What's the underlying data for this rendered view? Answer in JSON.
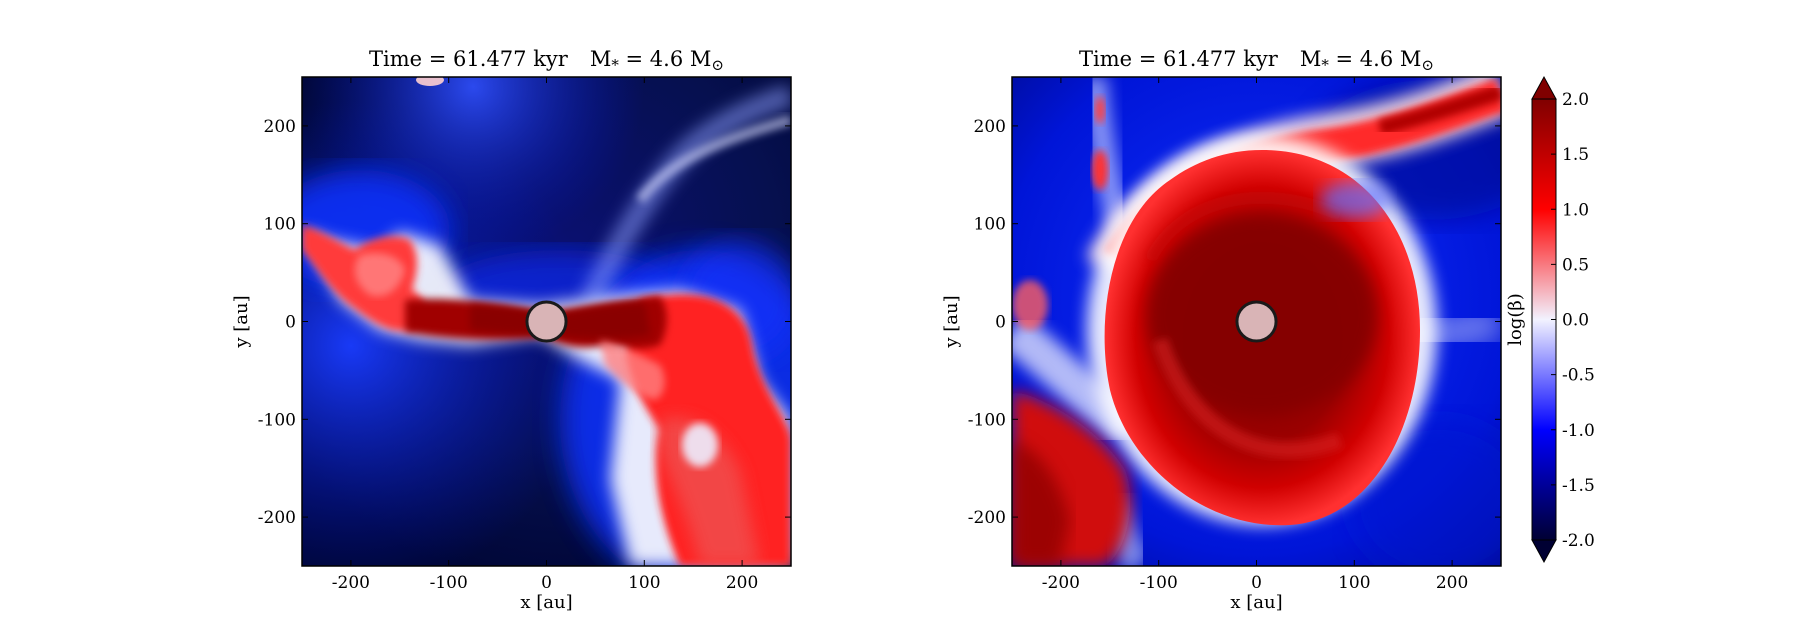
{
  "chart_data": [
    {
      "type": "heatmap",
      "title_parts": {
        "time": "Time = 61.477 kyr",
        "mass": "M",
        "mass_sub": "*",
        "mass_value": " = 4.6 M",
        "mass_sun": "⊙"
      },
      "xlabel": "x [au]",
      "ylabel": "y [au]",
      "xlim": [
        -250,
        250
      ],
      "ylim": [
        -250,
        250
      ],
      "xticks": [
        -200,
        -100,
        0,
        100,
        200
      ],
      "yticks": [
        -200,
        -100,
        0,
        100,
        200
      ],
      "xtick_labels": [
        "-200",
        "-100",
        "0",
        "100",
        "200"
      ],
      "ytick_labels": [
        "-200",
        "-100",
        "0",
        "100",
        "200"
      ],
      "sink_marker": {
        "x": 0,
        "y": 0,
        "radius": 20,
        "color": "#d9b4b6"
      },
      "field": "log(beta), edge-on view: dense red disk band along y≈0 with a red outflow lobe toward lower right; blue to dark navy background"
    },
    {
      "type": "heatmap",
      "title_parts": {
        "time": "Time = 61.477 kyr",
        "mass": "M",
        "mass_sub": "*",
        "mass_value": " = 4.6 M",
        "mass_sun": "⊙"
      },
      "xlabel": "x [au]",
      "ylabel": "y [au]",
      "xlim": [
        -250,
        250
      ],
      "ylim": [
        -250,
        250
      ],
      "xticks": [
        -200,
        -100,
        0,
        100,
        200
      ],
      "yticks": [
        -200,
        -100,
        0,
        100,
        200
      ],
      "xtick_labels": [
        "-200",
        "-100",
        "0",
        "100",
        "200"
      ],
      "ytick_labels": [
        "-200",
        "-100",
        "0",
        "100",
        "200"
      ],
      "sink_marker": {
        "x": 0,
        "y": 0,
        "radius": 20,
        "color": "#d9b4b6"
      },
      "field": "log(beta), face-on view: dark red disk with spiral arms, red streamer to upper right, blue filaments"
    }
  ],
  "colorbar": {
    "label": "log(β)",
    "min": -2.0,
    "max": 2.0,
    "extend": "both",
    "ticks": [
      2.0,
      1.5,
      1.0,
      0.5,
      0.0,
      -0.5,
      -1.0,
      -1.5,
      -2.0
    ],
    "tick_labels": [
      "2.0",
      "1.5",
      "1.0",
      "0.5",
      "0.0",
      "-0.5",
      "-1.0",
      "-1.5",
      "-2.0"
    ],
    "colormap": "seismic",
    "colors": {
      "low": "#000033",
      "mid_low": "#0000ff",
      "mid": "#f2f2ff",
      "mid_high": "#ff0000",
      "high": "#800000"
    }
  }
}
